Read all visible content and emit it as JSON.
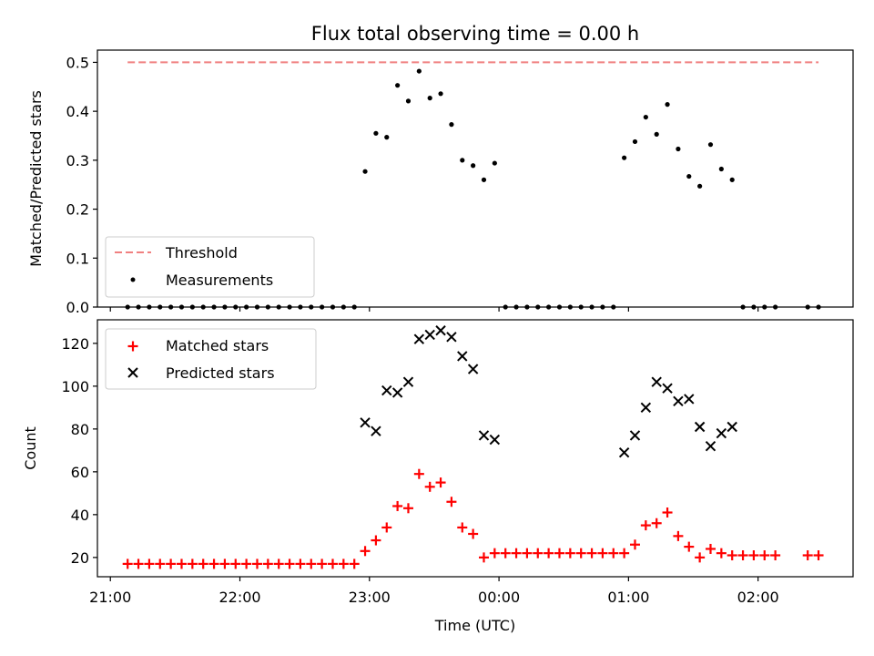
{
  "title": "Flux total observing time = 0.00 h",
  "xlabel": "Time (UTC)",
  "colors": {
    "threshold": "#f08080",
    "measurements": "#000000",
    "matched": "#ff0000",
    "predicted": "#000000"
  },
  "chart_data": [
    {
      "type": "scatter",
      "title": "Flux total observing time = 0.00 h",
      "ylabel": "Matched/Predicted stars",
      "ylim": [
        0,
        0.525
      ],
      "yticks": [
        0.0,
        0.1,
        0.2,
        0.3,
        0.4,
        0.5
      ],
      "ytick_labels": [
        "0.0",
        "0.1",
        "0.2",
        "0.3",
        "0.4",
        "0.5"
      ],
      "legend_loc": "lower-left",
      "threshold": {
        "name": "Threshold",
        "value": 0.5,
        "x_range": [
          "21:08",
          "02:28"
        ]
      },
      "series": [
        {
          "name": "Measurements",
          "x": [
            "21:08",
            "21:13",
            "21:18",
            "21:23",
            "21:28",
            "21:33",
            "21:38",
            "21:43",
            "21:48",
            "21:53",
            "21:58",
            "22:03",
            "22:08",
            "22:13",
            "22:18",
            "22:23",
            "22:28",
            "22:33",
            "22:38",
            "22:43",
            "22:48",
            "22:53",
            "22:58",
            "23:03",
            "23:08",
            "23:13",
            "23:18",
            "23:23",
            "23:28",
            "23:33",
            "23:38",
            "23:43",
            "23:48",
            "23:53",
            "23:58",
            "00:03",
            "00:08",
            "00:13",
            "00:18",
            "00:23",
            "00:28",
            "00:33",
            "00:38",
            "00:43",
            "00:48",
            "00:53",
            "00:58",
            "01:03",
            "01:08",
            "01:13",
            "01:18",
            "01:23",
            "01:28",
            "01:33",
            "01:38",
            "01:43",
            "01:48",
            "01:53",
            "01:58",
            "02:03",
            "02:08",
            "02:23",
            "02:28"
          ],
          "y": [
            0,
            0,
            0,
            0,
            0,
            0,
            0,
            0,
            0,
            0,
            0,
            0,
            0,
            0,
            0,
            0,
            0,
            0,
            0,
            0,
            0,
            0,
            0.277,
            0.355,
            0.347,
            0.453,
            0.421,
            0.482,
            0.427,
            0.436,
            0.373,
            0.3,
            0.289,
            0.26,
            0.294,
            0,
            0,
            0,
            0,
            0,
            0,
            0,
            0,
            0,
            0,
            0,
            0.305,
            0.338,
            0.388,
            0.353,
            0.414,
            0.323,
            0.267,
            0.247,
            0.332,
            0.282,
            0.26,
            0,
            0,
            0,
            0,
            0,
            0
          ]
        }
      ]
    },
    {
      "type": "scatter",
      "ylabel": "Count",
      "xlabel": "Time (UTC)",
      "ylim": [
        11,
        131
      ],
      "yticks": [
        20,
        40,
        60,
        80,
        100,
        120
      ],
      "ytick_labels": [
        "20",
        "40",
        "60",
        "80",
        "100",
        "120"
      ],
      "xlim": [
        "20:54",
        "02:44"
      ],
      "xticks": [
        "21:00",
        "22:00",
        "23:00",
        "00:00",
        "01:00",
        "02:00"
      ],
      "xtick_labels": [
        "21:00",
        "22:00",
        "23:00",
        "00:00",
        "01:00",
        "02:00"
      ],
      "legend_loc": "upper-left",
      "series": [
        {
          "name": "Matched stars",
          "x": [
            "21:08",
            "21:13",
            "21:18",
            "21:23",
            "21:28",
            "21:33",
            "21:38",
            "21:43",
            "21:48",
            "21:53",
            "21:58",
            "22:03",
            "22:08",
            "22:13",
            "22:18",
            "22:23",
            "22:28",
            "22:33",
            "22:38",
            "22:43",
            "22:48",
            "22:53",
            "22:58",
            "23:03",
            "23:08",
            "23:13",
            "23:18",
            "23:23",
            "23:28",
            "23:33",
            "23:38",
            "23:43",
            "23:48",
            "23:53",
            "23:58",
            "00:03",
            "00:08",
            "00:13",
            "00:18",
            "00:23",
            "00:28",
            "00:33",
            "00:38",
            "00:43",
            "00:48",
            "00:53",
            "00:58",
            "01:03",
            "01:08",
            "01:13",
            "01:18",
            "01:23",
            "01:28",
            "01:33",
            "01:38",
            "01:43",
            "01:48",
            "01:53",
            "01:58",
            "02:03",
            "02:08",
            "02:23",
            "02:28"
          ],
          "y": [
            17,
            17,
            17,
            17,
            17,
            17,
            17,
            17,
            17,
            17,
            17,
            17,
            17,
            17,
            17,
            17,
            17,
            17,
            17,
            17,
            17,
            17,
            23,
            28,
            34,
            44,
            43,
            59,
            53,
            55,
            46,
            34,
            31,
            20,
            22,
            22,
            22,
            22,
            22,
            22,
            22,
            22,
            22,
            22,
            22,
            22,
            22,
            26,
            35,
            36,
            41,
            30,
            25,
            20,
            24,
            22,
            21,
            21,
            21,
            21,
            21,
            21,
            21
          ]
        },
        {
          "name": "Predicted stars",
          "x": [
            "22:58",
            "23:03",
            "23:08",
            "23:13",
            "23:18",
            "23:23",
            "23:28",
            "23:33",
            "23:38",
            "23:43",
            "23:48",
            "23:53",
            "23:58",
            "00:58",
            "01:03",
            "01:08",
            "01:13",
            "01:18",
            "01:23",
            "01:28",
            "01:33",
            "01:38",
            "01:43",
            "01:48",
            "01:53"
          ],
          "y": [
            83,
            79,
            98,
            97,
            102,
            122,
            124,
            126,
            123,
            114,
            108,
            77,
            75,
            69,
            77,
            90,
            102,
            99,
            93,
            94,
            81,
            72,
            78,
            81,
            null
          ]
        }
      ]
    }
  ]
}
